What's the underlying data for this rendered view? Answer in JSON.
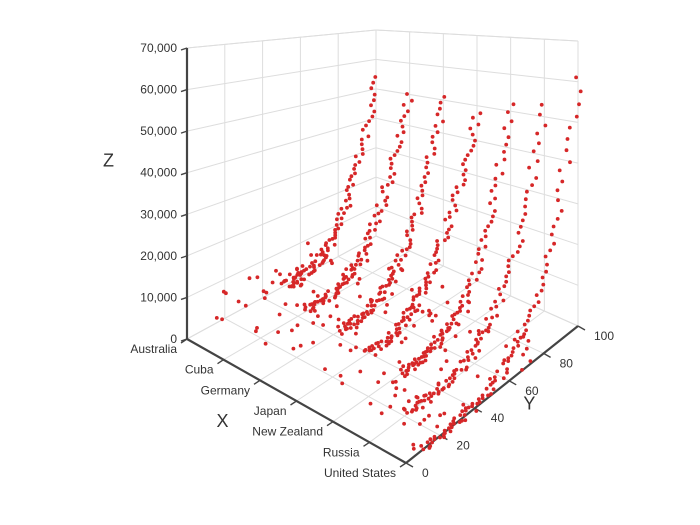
{
  "chart_data": {
    "type": "scatter3d",
    "title": "",
    "xlabel": "X",
    "ylabel": "Y",
    "zlabel": "Z",
    "x_categories": [
      "Australia",
      "Cuba",
      "Germany",
      "Japan",
      "New Zealand",
      "Russia",
      "United States"
    ],
    "y_ticks": [
      0,
      20,
      40,
      60,
      80,
      100
    ],
    "z_ticks": [
      0,
      10000,
      20000,
      30000,
      40000,
      50000,
      60000,
      70000
    ],
    "z_tick_labels": [
      "0",
      "10,000",
      "20,000",
      "30,000",
      "40,000",
      "50,000",
      "60,000",
      "70,000"
    ],
    "y_tick_labels": [
      "0",
      "20",
      "40",
      "60",
      "80",
      "100"
    ],
    "ylim": [
      0,
      100
    ],
    "zlim": [
      0,
      70000
    ],
    "grid": true,
    "legend": "none",
    "marker_color": "#d62728",
    "series": [
      {
        "country": "Australia",
        "y_range": [
          52,
          100
        ],
        "z_end": 54000,
        "shape": 3.2
      },
      {
        "country": "Cuba",
        "y_range": [
          45,
          100
        ],
        "z_end": 50000,
        "shape": 3.0
      },
      {
        "country": "Germany",
        "y_range": [
          45,
          100
        ],
        "z_end": 51000,
        "shape": 3.0
      },
      {
        "country": "Japan",
        "y_range": [
          40,
          100
        ],
        "z_end": 48000,
        "shape": 2.6
      },
      {
        "country": "New Zealand",
        "y_range": [
          38,
          100
        ],
        "z_end": 52000,
        "shape": 3.6
      },
      {
        "country": "Russia",
        "y_range": [
          22,
          100
        ],
        "z_end": 53000,
        "shape": 3.8
      },
      {
        "country": "United States",
        "y_range": [
          10,
          100
        ],
        "z_end": 61000,
        "shape": 4.2
      }
    ]
  }
}
